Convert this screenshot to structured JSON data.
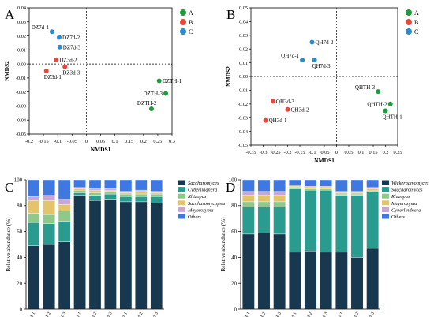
{
  "chart_data": [
    {
      "panel": "A",
      "type": "scatter",
      "xlabel": "NMDS1",
      "ylabel": "NMDS2",
      "xlim": [
        -0.2,
        0.3
      ],
      "ylim": [
        -0.05,
        0.04
      ],
      "xticks": [
        -0.2,
        -0.15,
        -0.1,
        -0.05,
        0,
        0.05,
        0.1,
        0.15,
        0.2,
        0.25,
        0.3
      ],
      "yticks": [
        -0.05,
        -0.04,
        -0.03,
        -0.02,
        -0.01,
        0.0,
        0.01,
        0.02,
        0.03,
        0.04
      ],
      "xtick_labels": [
        "-0.2",
        "-0.15",
        "-0.1",
        "-0.05",
        "0",
        "0.05",
        "0.1",
        "0.15",
        "0.2",
        "0.25",
        "0.3"
      ],
      "ytick_labels": [
        "-0.05",
        "-0.04",
        "-0.03",
        "-0.02",
        "-0.01",
        "0.00",
        "0.01",
        "0.02",
        "0.03",
        "0.04"
      ],
      "legend": [
        {
          "name": "A",
          "color": "#1e9b3c"
        },
        {
          "name": "B",
          "color": "#e8473a"
        },
        {
          "name": "C",
          "color": "#2a8ccf"
        }
      ],
      "points": [
        {
          "label": "DZ7d-1",
          "x": -0.12,
          "y": 0.023,
          "group": "C",
          "anchor": "end-above"
        },
        {
          "label": "DZ7d-2",
          "x": -0.095,
          "y": 0.019,
          "group": "C",
          "anchor": "start"
        },
        {
          "label": "DZ7d-3",
          "x": -0.093,
          "y": 0.012,
          "group": "C",
          "anchor": "start"
        },
        {
          "label": "DZ3d-2",
          "x": -0.105,
          "y": 0.003,
          "group": "B",
          "anchor": "start"
        },
        {
          "label": "DZ3d-1",
          "x": -0.14,
          "y": -0.005,
          "group": "B",
          "anchor": "below-right"
        },
        {
          "label": "DZ3d-3",
          "x": -0.075,
          "y": -0.002,
          "group": "B",
          "anchor": "below-right"
        },
        {
          "label": "DZTH-1",
          "x": 0.255,
          "y": -0.012,
          "group": "A",
          "anchor": "start"
        },
        {
          "label": "DZTH-3",
          "x": 0.278,
          "y": -0.021,
          "group": "A",
          "anchor": "end"
        },
        {
          "label": "DZTH-2",
          "x": 0.228,
          "y": -0.032,
          "group": "A",
          "anchor": "start-above"
        }
      ]
    },
    {
      "panel": "B",
      "type": "scatter",
      "xlabel": "NMDS1",
      "ylabel": "NMDS2",
      "xlim": [
        -0.35,
        0.25
      ],
      "ylim": [
        -0.05,
        0.05
      ],
      "xticks": [
        -0.35,
        -0.3,
        -0.25,
        -0.2,
        -0.15,
        -0.1,
        -0.05,
        0,
        0.05,
        0.1,
        0.15,
        0.2,
        0.25
      ],
      "yticks": [
        -0.05,
        -0.04,
        -0.03,
        -0.02,
        -0.01,
        0.0,
        0.01,
        0.02,
        0.03,
        0.04,
        0.05
      ],
      "xtick_labels": [
        "-0.35",
        "-0.3",
        "-0.25",
        "-0.2",
        "-0.15",
        "-0.1",
        "-0.05",
        "0",
        "0.05",
        "0.1",
        "0.15",
        "0.2",
        "0.25"
      ],
      "ytick_labels": [
        "-0.05",
        "-0.04",
        "-0.03",
        "-0.02",
        "-0.01",
        "0.00",
        "0.01",
        "0.02",
        "0.03",
        "0.04",
        "0.05"
      ],
      "legend": [
        {
          "name": "A",
          "color": "#1e9b3c"
        },
        {
          "name": "B",
          "color": "#e8473a"
        },
        {
          "name": "C",
          "color": "#2a8ccf"
        }
      ],
      "points": [
        {
          "label": "QH7d-2",
          "x": -0.1,
          "y": 0.025,
          "group": "C",
          "anchor": "start"
        },
        {
          "label": "QH7d-1",
          "x": -0.14,
          "y": 0.012,
          "group": "C",
          "anchor": "end-above"
        },
        {
          "label": "QH7d-3",
          "x": -0.09,
          "y": 0.012,
          "group": "C",
          "anchor": "below-right"
        },
        {
          "label": "QH3d-3",
          "x": -0.26,
          "y": -0.018,
          "group": "B",
          "anchor": "start"
        },
        {
          "label": "QH3d-2",
          "x": -0.2,
          "y": -0.024,
          "group": "B",
          "anchor": "start"
        },
        {
          "label": "QH3d-1",
          "x": -0.29,
          "y": -0.032,
          "group": "B",
          "anchor": "start"
        },
        {
          "label": "QHTH-3",
          "x": 0.17,
          "y": -0.011,
          "group": "A",
          "anchor": "end-above"
        },
        {
          "label": "QHTH-2",
          "x": 0.22,
          "y": -0.02,
          "group": "A",
          "anchor": "end"
        },
        {
          "label": "QHTH-1",
          "x": 0.2,
          "y": -0.025,
          "group": "A",
          "anchor": "start-below"
        }
      ]
    },
    {
      "panel": "C",
      "type": "bar",
      "stacked": true,
      "ylabel": "Relative abundance (%)",
      "ylim": [
        0,
        100
      ],
      "yticks": [
        0,
        20,
        40,
        60,
        80,
        100
      ],
      "categories": [
        "DZTH-1",
        "DZTH-2",
        "DZTH-3",
        "DZ3d-1",
        "DZ3d-2",
        "DZ3d-3",
        "DZ7d-1",
        "DZ7d-2",
        "DZ7d-3"
      ],
      "series": [
        {
          "name": "Saccharomyces",
          "color": "#17384e",
          "values": [
            49,
            50,
            52,
            88,
            84,
            85,
            83,
            83,
            82
          ]
        },
        {
          "name": "Cyberlindnera",
          "color": "#2a9b8f",
          "values": [
            18,
            16,
            16,
            2,
            4,
            4,
            4,
            4,
            5
          ]
        },
        {
          "name": "Rhizopus",
          "color": "#8fc98a",
          "values": [
            7,
            7,
            8,
            2,
            2,
            2,
            2,
            2,
            2
          ]
        },
        {
          "name": "Saccharomycopsis",
          "color": "#e3c46a",
          "values": [
            10,
            11,
            5,
            1,
            2,
            1,
            1,
            2,
            1
          ]
        },
        {
          "name": "Meyerozyma",
          "color": "#c8a6d8",
          "values": [
            3,
            4,
            4,
            1,
            1,
            1,
            1,
            1,
            1
          ]
        },
        {
          "name": "Others",
          "color": "#3f78e0",
          "values": [
            13,
            12,
            15,
            6,
            7,
            7,
            9,
            8,
            9
          ]
        }
      ]
    },
    {
      "panel": "D",
      "type": "bar",
      "stacked": true,
      "ylabel": "Relative abundance (%)",
      "ylim": [
        0,
        100
      ],
      "yticks": [
        0,
        20,
        40,
        60,
        80,
        100
      ],
      "categories": [
        "QHQH-1",
        "QHTH-2",
        "QHTH-3",
        "QH3d-1",
        "QH3d-2",
        "QH3d-3",
        "QH7d-1",
        "QH7d-2",
        "QH7d-3"
      ],
      "series": [
        {
          "name": "Wickerhamomyces",
          "color": "#17384e",
          "values": [
            58,
            59,
            58,
            44,
            45,
            44,
            44,
            40,
            47
          ]
        },
        {
          "name": "Saccharomyces",
          "color": "#2a9b8f",
          "values": [
            21,
            20,
            21,
            49,
            47,
            48,
            44,
            48,
            44
          ]
        },
        {
          "name": "Rhizopus",
          "color": "#8fc98a",
          "values": [
            4,
            4,
            4,
            1,
            1,
            1,
            1,
            1,
            1
          ]
        },
        {
          "name": "Meyerozyma",
          "color": "#e3c46a",
          "values": [
            5,
            5,
            5,
            1,
            1,
            1,
            1,
            1,
            1
          ]
        },
        {
          "name": "Cyberlindnera",
          "color": "#c8a6d8",
          "values": [
            3,
            3,
            3,
            1,
            1,
            1,
            1,
            1,
            1
          ]
        },
        {
          "name": "Others",
          "color": "#3f78e0",
          "values": [
            9,
            9,
            9,
            4,
            5,
            5,
            9,
            9,
            6
          ]
        }
      ]
    }
  ]
}
